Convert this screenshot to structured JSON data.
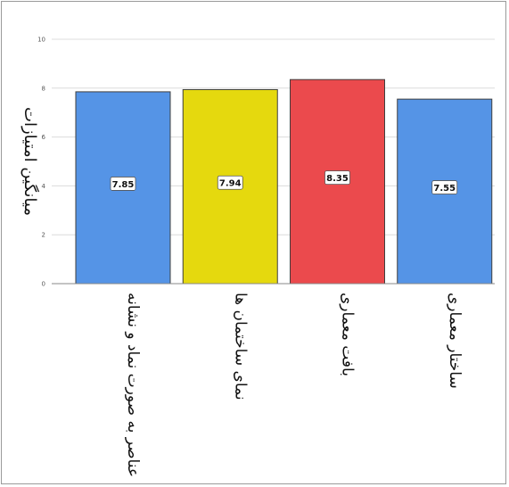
{
  "chart_data": {
    "type": "bar",
    "title": "",
    "xlabel": "",
    "ylabel": "میانگین امتیازات",
    "ylim": [
      0,
      10
    ],
    "yticks": [
      "0",
      "2",
      "4",
      "6",
      "8",
      "10"
    ],
    "grid": true,
    "categories": [
      "عناصر به صورت نماد و نشانه",
      "نمای ساختمان ها",
      "بافت معماری",
      "ساختار معماری"
    ],
    "values": [
      7.85,
      7.94,
      8.35,
      7.55
    ],
    "data_labels": [
      "7.85",
      "7.94",
      "8.35",
      "7.55"
    ],
    "colors": [
      "#5594e6",
      "#e5d90e",
      "#eb4a4d",
      "#5594e6"
    ]
  }
}
